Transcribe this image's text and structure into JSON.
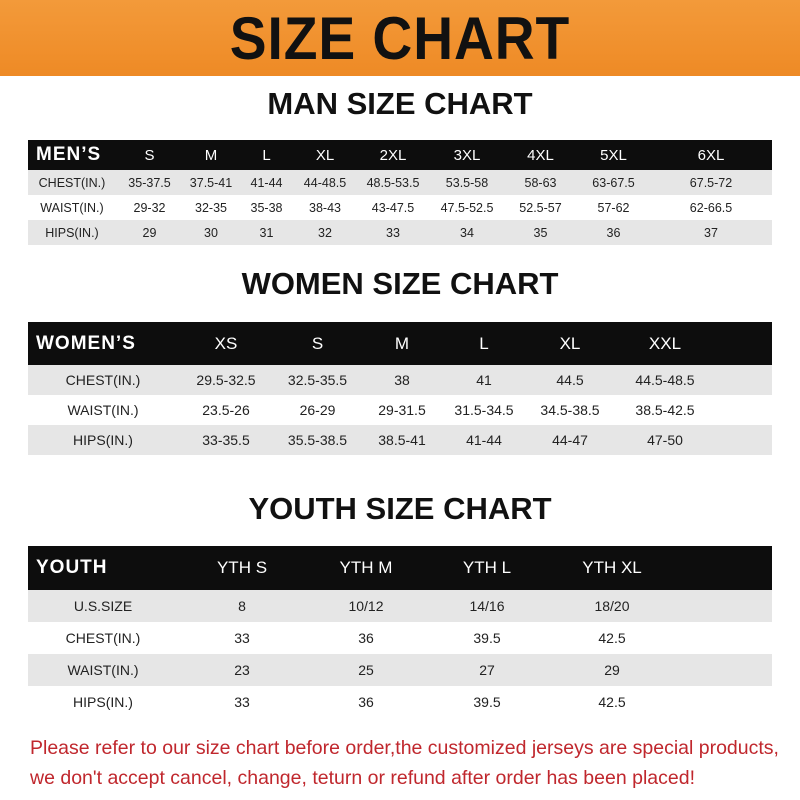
{
  "title": "SIZE CHART",
  "colors": {
    "banner": "#f0922e",
    "header_row": "#0d0d0d",
    "stripe": "#e6e6e6",
    "note": "#c0272d"
  },
  "men": {
    "title": "MAN SIZE CHART",
    "header": "MEN’S",
    "sizes": [
      "S",
      "M",
      "L",
      "XL",
      "2XL",
      "3XL",
      "4XL",
      "5XL",
      "6XL"
    ],
    "rows": [
      {
        "label": "CHEST(IN.)",
        "values": [
          "35-37.5",
          "37.5-41",
          "41-44",
          "44-48.5",
          "48.5-53.5",
          "53.5-58",
          "58-63",
          "63-67.5",
          "67.5-72"
        ]
      },
      {
        "label": "WAIST(IN.)",
        "values": [
          "29-32",
          "32-35",
          "35-38",
          "38-43",
          "43-47.5",
          "47.5-52.5",
          "52.5-57",
          "57-62",
          "62-66.5"
        ]
      },
      {
        "label": "HIPS(IN.)",
        "values": [
          "29",
          "30",
          "31",
          "32",
          "33",
          "34",
          "35",
          "36",
          "37"
        ]
      }
    ]
  },
  "women": {
    "title": "WOMEN SIZE CHART",
    "header": "WOMEN’S",
    "sizes": [
      "XS",
      "S",
      "M",
      "L",
      "XL",
      "XXL"
    ],
    "rows": [
      {
        "label": "CHEST(IN.)",
        "values": [
          "29.5-32.5",
          "32.5-35.5",
          "38",
          "41",
          "44.5",
          "44.5-48.5"
        ]
      },
      {
        "label": "WAIST(IN.)",
        "values": [
          "23.5-26",
          "26-29",
          "29-31.5",
          "31.5-34.5",
          "34.5-38.5",
          "38.5-42.5"
        ]
      },
      {
        "label": "HIPS(IN.)",
        "values": [
          "33-35.5",
          "35.5-38.5",
          "38.5-41",
          "41-44",
          "44-47",
          "47-50"
        ]
      }
    ]
  },
  "youth": {
    "title": "YOUTH SIZE CHART",
    "header": "YOUTH",
    "sizes": [
      "YTH S",
      "YTH M",
      "YTH L",
      "YTH XL"
    ],
    "rows": [
      {
        "label": "U.S.SIZE",
        "values": [
          "8",
          "10/12",
          "14/16",
          "18/20"
        ]
      },
      {
        "label": "CHEST(IN.)",
        "values": [
          "33",
          "36",
          "39.5",
          "42.5"
        ]
      },
      {
        "label": "WAIST(IN.)",
        "values": [
          "23",
          "25",
          "27",
          "29"
        ]
      },
      {
        "label": "HIPS(IN.)",
        "values": [
          "33",
          "36",
          "39.5",
          "42.5"
        ]
      }
    ]
  },
  "note": {
    "line1": "Please refer to our size chart before order,the customized jerseys are special products,",
    "line2": "we don't accept cancel, change, teturn or refund after order has been placed!"
  }
}
